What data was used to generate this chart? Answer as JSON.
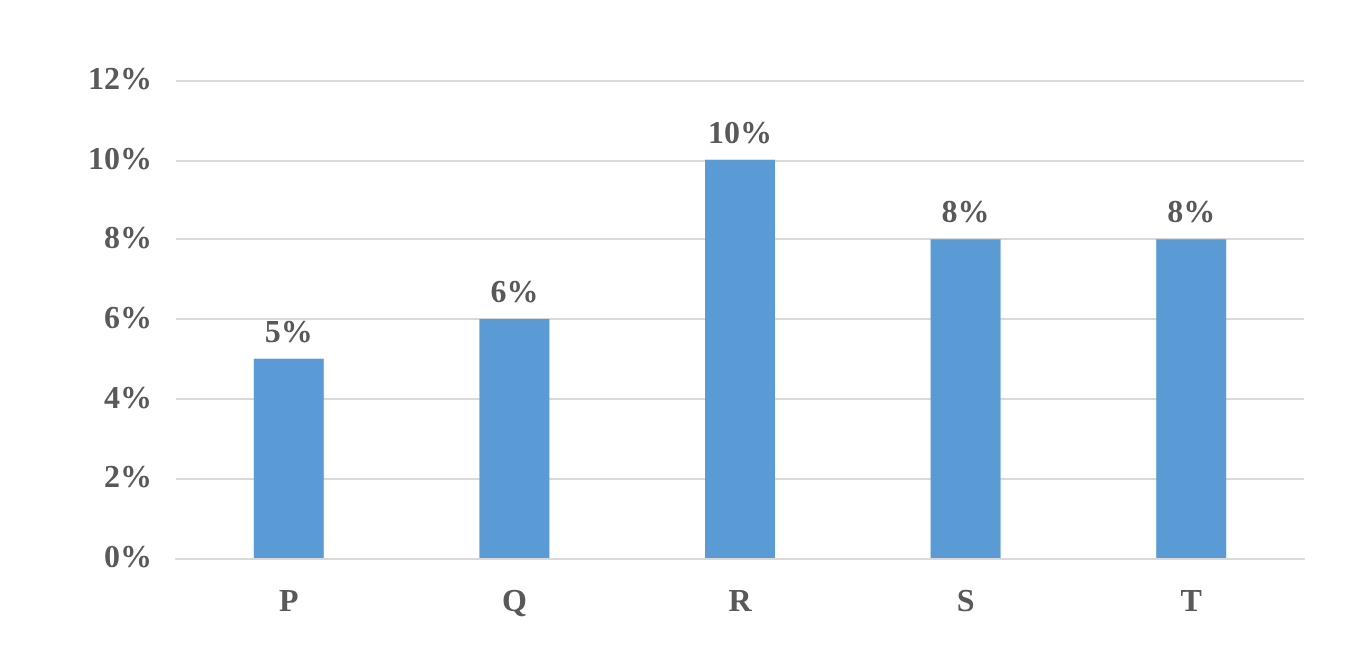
{
  "chart_data": {
    "type": "bar",
    "categories": [
      "P",
      "Q",
      "R",
      "S",
      "T"
    ],
    "values": [
      5,
      6,
      10,
      8,
      8
    ],
    "color": "#5b9bd5",
    "value_labels": [
      "5%",
      "6%",
      "10%",
      "8%",
      "8%"
    ],
    "ylim": [
      0,
      12
    ],
    "yticks": [
      {
        "value": 0,
        "label": "0%"
      },
      {
        "value": 2,
        "label": "2%"
      },
      {
        "value": 4,
        "label": "4%"
      },
      {
        "value": 6,
        "label": "6%"
      },
      {
        "value": 8,
        "label": "8%"
      },
      {
        "value": 10,
        "label": "10%"
      },
      {
        "value": 12,
        "label": "12%"
      }
    ],
    "grid": "y"
  }
}
